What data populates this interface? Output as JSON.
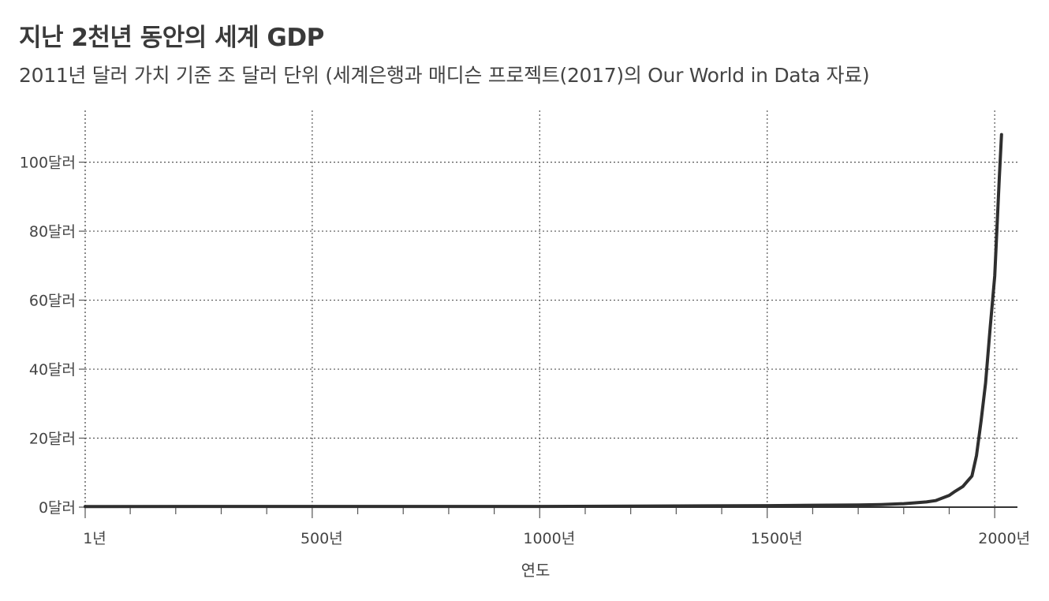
{
  "chart_data": {
    "type": "line",
    "title": "지난 2천년 동안의 세계 GDP",
    "subtitle": "2011년 달러 가치 기준 조 달러 단위 (세계은행과 매디슨 프로젝트(2017)의 Our World in Data 자료)",
    "xlabel": "연도",
    "ylabel": "",
    "xlim": [
      1,
      2050
    ],
    "ylim": [
      0,
      115
    ],
    "x_ticks": [
      {
        "value": 1,
        "label": "1년"
      },
      {
        "value": 500,
        "label": "500년"
      },
      {
        "value": 1000,
        "label": "1000년"
      },
      {
        "value": 1500,
        "label": "1500년"
      },
      {
        "value": 2000,
        "label": "2000년"
      }
    ],
    "y_ticks": [
      {
        "value": 0,
        "label": "0달러"
      },
      {
        "value": 20,
        "label": "20달러"
      },
      {
        "value": 40,
        "label": "40달러"
      },
      {
        "value": 60,
        "label": "60달러"
      },
      {
        "value": 80,
        "label": "80달러"
      },
      {
        "value": 100,
        "label": "100달러"
      }
    ],
    "grid": true,
    "series": [
      {
        "name": "",
        "x": [
          1,
          500,
          1000,
          1500,
          1600,
          1700,
          1750,
          1800,
          1820,
          1850,
          1870,
          1900,
          1913,
          1930,
          1940,
          1950,
          1960,
          1970,
          1980,
          1990,
          2000,
          2010,
          2015
        ],
        "y": [
          0.18,
          0.2,
          0.21,
          0.43,
          0.55,
          0.65,
          0.75,
          1.0,
          1.2,
          1.5,
          1.9,
          3.4,
          4.6,
          6.0,
          7.5,
          9.0,
          15.0,
          25.0,
          36.0,
          52.0,
          67.0,
          95.0,
          108.0
        ]
      }
    ]
  }
}
